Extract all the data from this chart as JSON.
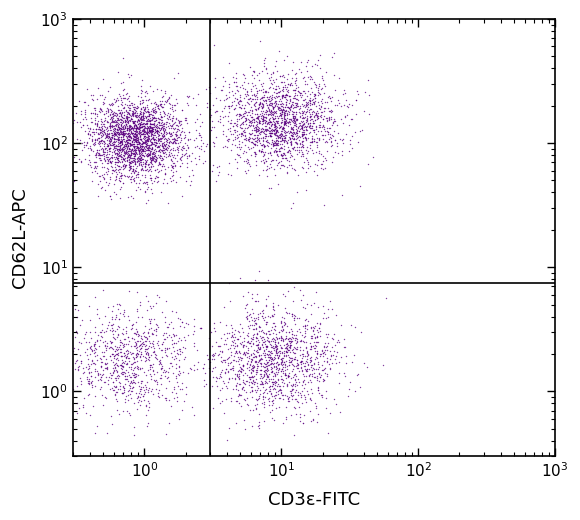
{
  "xlabel": "CD3ε-FITC",
  "ylabel": "CD62L-APC",
  "dot_color": "#5B0080",
  "dot_alpha": 0.75,
  "dot_size": 1.0,
  "xline": 3.0,
  "yline": 7.5,
  "xlim": [
    0.3,
    1000
  ],
  "ylim": [
    0.3,
    1000
  ],
  "background_color": "#ffffff",
  "seed": 42,
  "n_UL": 2500,
  "n_UR": 1800,
  "n_LL": 900,
  "n_LR": 1400
}
